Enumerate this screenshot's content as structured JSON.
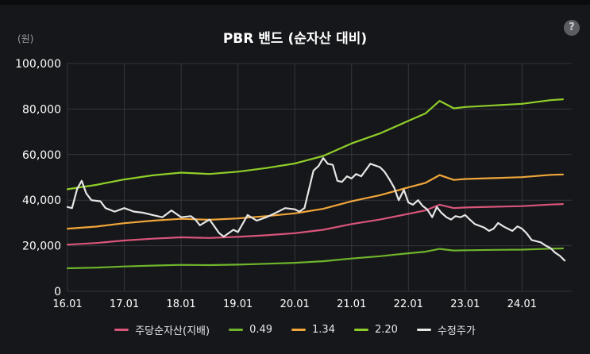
{
  "chart_data": {
    "type": "line",
    "title": "PBR 밴드 (순자산 대비)",
    "unit_label": "(원)",
    "ylim": [
      0,
      100000
    ],
    "xlim": [
      2016.0,
      2024.83
    ],
    "y_ticks": [
      0,
      20000,
      40000,
      60000,
      80000,
      100000
    ],
    "y_tick_labels": [
      "0",
      "20,000",
      "40,000",
      "60,000",
      "80,000",
      "100,000"
    ],
    "x_ticks": [
      2016,
      2017,
      2018,
      2019,
      2020,
      2021,
      2022,
      2023,
      2024
    ],
    "x_tick_labels": [
      "16.01",
      "17.01",
      "18.01",
      "19.01",
      "20.01",
      "21.01",
      "22.01",
      "23.01",
      "24.01"
    ],
    "grid": true,
    "legend_position": "bottom",
    "series": [
      {
        "name": "주당순자산(지배)",
        "color": "#d9557a",
        "points": [
          [
            2016.0,
            20500
          ],
          [
            2016.5,
            21200
          ],
          [
            2017.0,
            22300
          ],
          [
            2017.5,
            23100
          ],
          [
            2018.0,
            23700
          ],
          [
            2018.5,
            23400
          ],
          [
            2019.0,
            23900
          ],
          [
            2019.5,
            24600
          ],
          [
            2020.0,
            25500
          ],
          [
            2020.5,
            27000
          ],
          [
            2021.0,
            29500
          ],
          [
            2021.5,
            31500
          ],
          [
            2022.0,
            34000
          ],
          [
            2022.3,
            35500
          ],
          [
            2022.55,
            38000
          ],
          [
            2022.8,
            36500
          ],
          [
            2023.0,
            36800
          ],
          [
            2023.5,
            37100
          ],
          [
            2024.0,
            37400
          ],
          [
            2024.5,
            38100
          ],
          [
            2024.72,
            38300
          ]
        ]
      },
      {
        "name": "0.49",
        "color": "#6fb52c",
        "points": [
          [
            2016.0,
            10100
          ],
          [
            2016.5,
            10400
          ],
          [
            2017.0,
            10900
          ],
          [
            2017.5,
            11300
          ],
          [
            2018.0,
            11600
          ],
          [
            2018.5,
            11500
          ],
          [
            2019.0,
            11700
          ],
          [
            2019.5,
            12100
          ],
          [
            2020.0,
            12500
          ],
          [
            2020.5,
            13200
          ],
          [
            2021.0,
            14400
          ],
          [
            2021.5,
            15400
          ],
          [
            2022.0,
            16700
          ],
          [
            2022.3,
            17400
          ],
          [
            2022.55,
            18600
          ],
          [
            2022.8,
            17900
          ],
          [
            2023.0,
            18000
          ],
          [
            2023.5,
            18200
          ],
          [
            2024.0,
            18300
          ],
          [
            2024.5,
            18700
          ],
          [
            2024.72,
            18800
          ]
        ]
      },
      {
        "name": "1.34",
        "color": "#f0a63a",
        "points": [
          [
            2016.0,
            27500
          ],
          [
            2016.5,
            28400
          ],
          [
            2017.0,
            29900
          ],
          [
            2017.5,
            31000
          ],
          [
            2018.0,
            31800
          ],
          [
            2018.5,
            31400
          ],
          [
            2019.0,
            32000
          ],
          [
            2019.5,
            33000
          ],
          [
            2020.0,
            34200
          ],
          [
            2020.5,
            36200
          ],
          [
            2021.0,
            39500
          ],
          [
            2021.5,
            42200
          ],
          [
            2022.0,
            45600
          ],
          [
            2022.3,
            47600
          ],
          [
            2022.55,
            51000
          ],
          [
            2022.8,
            48900
          ],
          [
            2023.0,
            49300
          ],
          [
            2023.5,
            49700
          ],
          [
            2024.0,
            50100
          ],
          [
            2024.5,
            51100
          ],
          [
            2024.72,
            51300
          ]
        ]
      },
      {
        "name": "2.20",
        "color": "#8fce2a",
        "points": [
          [
            2016.0,
            44800
          ],
          [
            2016.5,
            46700
          ],
          [
            2017.0,
            49100
          ],
          [
            2017.5,
            50900
          ],
          [
            2018.0,
            52100
          ],
          [
            2018.5,
            51500
          ],
          [
            2019.0,
            52500
          ],
          [
            2019.5,
            54100
          ],
          [
            2020.0,
            56100
          ],
          [
            2020.5,
            59400
          ],
          [
            2021.0,
            64900
          ],
          [
            2021.5,
            69300
          ],
          [
            2022.0,
            74800
          ],
          [
            2022.3,
            78100
          ],
          [
            2022.55,
            83600
          ],
          [
            2022.8,
            80300
          ],
          [
            2023.0,
            80900
          ],
          [
            2023.5,
            81600
          ],
          [
            2024.0,
            82300
          ],
          [
            2024.5,
            83900
          ],
          [
            2024.72,
            84300
          ]
        ]
      },
      {
        "name": "수정주가",
        "color": "#e6e6e6",
        "points": [
          [
            2016.0,
            37000
          ],
          [
            2016.08,
            36500
          ],
          [
            2016.17,
            45000
          ],
          [
            2016.25,
            48500
          ],
          [
            2016.33,
            43000
          ],
          [
            2016.42,
            40000
          ],
          [
            2016.58,
            39500
          ],
          [
            2016.67,
            36500
          ],
          [
            2016.83,
            35000
          ],
          [
            2017.0,
            36500
          ],
          [
            2017.17,
            35000
          ],
          [
            2017.33,
            34500
          ],
          [
            2017.5,
            33500
          ],
          [
            2017.67,
            32500
          ],
          [
            2017.83,
            35500
          ],
          [
            2018.0,
            32500
          ],
          [
            2018.17,
            33000
          ],
          [
            2018.25,
            31500
          ],
          [
            2018.33,
            29000
          ],
          [
            2018.5,
            31500
          ],
          [
            2018.67,
            25500
          ],
          [
            2018.75,
            24000
          ],
          [
            2018.92,
            27000
          ],
          [
            2019.0,
            26000
          ],
          [
            2019.08,
            29500
          ],
          [
            2019.17,
            33500
          ],
          [
            2019.33,
            31000
          ],
          [
            2019.5,
            32500
          ],
          [
            2019.67,
            34500
          ],
          [
            2019.83,
            36500
          ],
          [
            2020.0,
            36000
          ],
          [
            2020.08,
            35000
          ],
          [
            2020.17,
            36500
          ],
          [
            2020.33,
            53000
          ],
          [
            2020.42,
            55000
          ],
          [
            2020.5,
            58500
          ],
          [
            2020.58,
            56000
          ],
          [
            2020.67,
            55500
          ],
          [
            2020.75,
            48500
          ],
          [
            2020.83,
            48000
          ],
          [
            2020.92,
            50500
          ],
          [
            2021.0,
            49500
          ],
          [
            2021.08,
            51500
          ],
          [
            2021.17,
            50500
          ],
          [
            2021.33,
            56000
          ],
          [
            2021.5,
            54500
          ],
          [
            2021.58,
            52500
          ],
          [
            2021.67,
            49000
          ],
          [
            2021.75,
            45500
          ],
          [
            2021.83,
            40000
          ],
          [
            2021.92,
            44500
          ],
          [
            2022.0,
            39000
          ],
          [
            2022.08,
            38000
          ],
          [
            2022.17,
            40000
          ],
          [
            2022.25,
            37500
          ],
          [
            2022.33,
            36000
          ],
          [
            2022.42,
            32500
          ],
          [
            2022.5,
            37000
          ],
          [
            2022.58,
            34500
          ],
          [
            2022.67,
            32500
          ],
          [
            2022.75,
            31500
          ],
          [
            2022.83,
            33000
          ],
          [
            2022.92,
            32500
          ],
          [
            2023.0,
            33500
          ],
          [
            2023.08,
            31500
          ],
          [
            2023.17,
            29500
          ],
          [
            2023.33,
            28000
          ],
          [
            2023.42,
            26500
          ],
          [
            2023.5,
            27500
          ],
          [
            2023.58,
            30000
          ],
          [
            2023.67,
            28500
          ],
          [
            2023.75,
            27500
          ],
          [
            2023.83,
            26500
          ],
          [
            2023.92,
            28500
          ],
          [
            2024.0,
            27500
          ],
          [
            2024.08,
            25500
          ],
          [
            2024.17,
            22500
          ],
          [
            2024.33,
            21500
          ],
          [
            2024.42,
            20000
          ],
          [
            2024.5,
            19000
          ],
          [
            2024.58,
            17000
          ],
          [
            2024.67,
            15500
          ],
          [
            2024.75,
            13500
          ]
        ]
      }
    ]
  }
}
